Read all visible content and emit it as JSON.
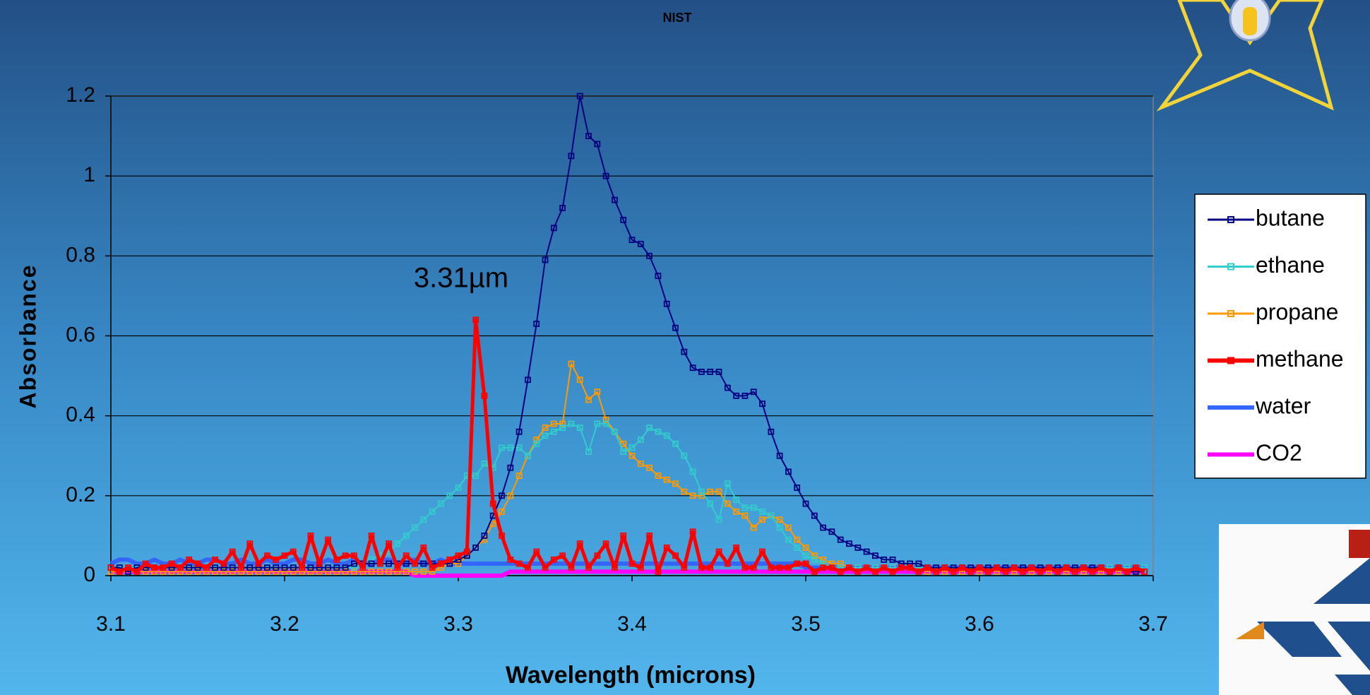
{
  "chart_data": {
    "type": "line",
    "title": "NIST",
    "xlabel": "Wavelength (microns)",
    "ylabel": "Absorbance",
    "annotation": "3.31µm",
    "xlim": [
      3.1,
      3.7
    ],
    "xticks": [
      3.1,
      3.2,
      3.3,
      3.4,
      3.5,
      3.6,
      3.7
    ],
    "ylim": [
      0,
      1.2
    ],
    "yticks": [
      0,
      0.2,
      0.4,
      0.6,
      0.8,
      1,
      1.2
    ],
    "grid": true,
    "legend": "right",
    "x": [
      3.1,
      3.105,
      3.11,
      3.115,
      3.12,
      3.125,
      3.13,
      3.135,
      3.14,
      3.145,
      3.15,
      3.155,
      3.16,
      3.165,
      3.17,
      3.175,
      3.18,
      3.185,
      3.19,
      3.195,
      3.2,
      3.205,
      3.21,
      3.215,
      3.22,
      3.225,
      3.23,
      3.235,
      3.24,
      3.245,
      3.25,
      3.255,
      3.26,
      3.265,
      3.27,
      3.275,
      3.28,
      3.285,
      3.29,
      3.295,
      3.3,
      3.305,
      3.31,
      3.315,
      3.32,
      3.325,
      3.33,
      3.335,
      3.34,
      3.345,
      3.35,
      3.355,
      3.36,
      3.365,
      3.37,
      3.375,
      3.38,
      3.385,
      3.39,
      3.395,
      3.4,
      3.405,
      3.41,
      3.415,
      3.42,
      3.425,
      3.43,
      3.435,
      3.44,
      3.445,
      3.45,
      3.455,
      3.46,
      3.465,
      3.47,
      3.475,
      3.48,
      3.485,
      3.49,
      3.495,
      3.5,
      3.505,
      3.51,
      3.515,
      3.52,
      3.525,
      3.53,
      3.535,
      3.54,
      3.545,
      3.55,
      3.555,
      3.56,
      3.565,
      3.57,
      3.575,
      3.58,
      3.585,
      3.59,
      3.595,
      3.6,
      3.605,
      3.61,
      3.615,
      3.62,
      3.625,
      3.63,
      3.635,
      3.64,
      3.645,
      3.65,
      3.655,
      3.66,
      3.665,
      3.67,
      3.675,
      3.68,
      3.685,
      3.69,
      3.695
    ],
    "series": [
      {
        "name": "butane",
        "color": "#000080",
        "markers": true,
        "values": [
          0.02,
          0.02,
          0.01,
          0.02,
          0.02,
          0.02,
          0.02,
          0.02,
          0.02,
          0.02,
          0.02,
          0.02,
          0.02,
          0.02,
          0.02,
          0.02,
          0.02,
          0.02,
          0.02,
          0.02,
          0.02,
          0.02,
          0.02,
          0.02,
          0.02,
          0.02,
          0.02,
          0.02,
          0.03,
          0.03,
          0.03,
          0.03,
          0.03,
          0.03,
          0.03,
          0.03,
          0.03,
          0.03,
          0.03,
          0.03,
          0.04,
          0.05,
          0.07,
          0.1,
          0.15,
          0.2,
          0.27,
          0.36,
          0.49,
          0.63,
          0.79,
          0.87,
          0.92,
          1.05,
          1.2,
          1.1,
          1.08,
          1.0,
          0.94,
          0.89,
          0.84,
          0.83,
          0.8,
          0.75,
          0.68,
          0.62,
          0.56,
          0.52,
          0.51,
          0.51,
          0.51,
          0.47,
          0.45,
          0.45,
          0.46,
          0.43,
          0.36,
          0.3,
          0.26,
          0.22,
          0.18,
          0.15,
          0.12,
          0.11,
          0.09,
          0.08,
          0.07,
          0.06,
          0.05,
          0.04,
          0.04,
          0.03,
          0.03,
          0.03,
          0.02,
          0.02,
          0.02,
          0.02,
          0.02,
          0.02,
          0.02,
          0.02,
          0.02,
          0.02,
          0.02,
          0.02,
          0.02,
          0.02,
          0.02,
          0.02,
          0.02,
          0.02,
          0.02,
          0.02,
          0.02,
          0.01,
          0.02,
          0.01,
          0.01,
          0.01
        ]
      },
      {
        "name": "ethane",
        "color": "#33cccc",
        "markers": true,
        "values": [
          0.02,
          0.02,
          0.02,
          0.02,
          0.02,
          0.02,
          0.02,
          0.02,
          0.02,
          0.02,
          0.02,
          0.02,
          0.02,
          0.02,
          0.02,
          0.02,
          0.02,
          0.02,
          0.02,
          0.02,
          0.02,
          0.02,
          0.02,
          0.02,
          0.02,
          0.02,
          0.02,
          0.02,
          0.02,
          0.02,
          0.04,
          0.05,
          0.06,
          0.08,
          0.1,
          0.12,
          0.14,
          0.16,
          0.18,
          0.2,
          0.22,
          0.25,
          0.25,
          0.28,
          0.27,
          0.32,
          0.32,
          0.32,
          0.3,
          0.33,
          0.35,
          0.36,
          0.37,
          0.38,
          0.37,
          0.31,
          0.38,
          0.38,
          0.36,
          0.31,
          0.32,
          0.34,
          0.37,
          0.36,
          0.35,
          0.33,
          0.3,
          0.26,
          0.21,
          0.18,
          0.14,
          0.23,
          0.19,
          0.17,
          0.17,
          0.16,
          0.15,
          0.12,
          0.09,
          0.07,
          0.05,
          0.04,
          0.03,
          0.02,
          0.02,
          0.02,
          0.02,
          0.02,
          0.02,
          0.02,
          0.02,
          0.02,
          0.02,
          0.02,
          0.02,
          0.02,
          0.02,
          0.02,
          0.02,
          0.02,
          0.02,
          0.02,
          0.02,
          0.02,
          0.02,
          0.02,
          0.02,
          0.02,
          0.02,
          0.02,
          0.02,
          0.02,
          0.02,
          0.02,
          0.02,
          0.02,
          0.02,
          0.02,
          0.02,
          0.02
        ]
      },
      {
        "name": "propane",
        "color": "#ff9900",
        "markers": true,
        "values": [
          0.01,
          0.01,
          0.01,
          0.01,
          0.01,
          0.01,
          0.01,
          0.01,
          0.01,
          0.01,
          0.01,
          0.01,
          0.01,
          0.01,
          0.01,
          0.01,
          0.01,
          0.01,
          0.01,
          0.01,
          0.01,
          0.01,
          0.01,
          0.01,
          0.01,
          0.01,
          0.01,
          0.01,
          0.01,
          0.01,
          0.01,
          0.01,
          0.01,
          0.01,
          0.01,
          0.01,
          0.01,
          0.01,
          0.02,
          0.03,
          0.03,
          0.05,
          0.07,
          0.09,
          0.13,
          0.16,
          0.2,
          0.25,
          0.3,
          0.34,
          0.37,
          0.38,
          0.38,
          0.53,
          0.49,
          0.44,
          0.46,
          0.39,
          0.36,
          0.33,
          0.3,
          0.28,
          0.27,
          0.25,
          0.24,
          0.23,
          0.21,
          0.2,
          0.2,
          0.21,
          0.21,
          0.18,
          0.16,
          0.15,
          0.12,
          0.14,
          0.15,
          0.14,
          0.12,
          0.09,
          0.07,
          0.05,
          0.04,
          0.03,
          0.03,
          0.02,
          0.02,
          0.02,
          0.02,
          0.02,
          0.02,
          0.02,
          0.02,
          0.02,
          0.01,
          0.02,
          0.01,
          0.02,
          0.01,
          0.02,
          0.01,
          0.02,
          0.01,
          0.02,
          0.01,
          0.02,
          0.01,
          0.02,
          0.01,
          0.02,
          0.01,
          0.02,
          0.01,
          0.02,
          0.01,
          0.02,
          0.01,
          0.02,
          0.01,
          0.01
        ]
      },
      {
        "name": "methane",
        "color": "#ff0000",
        "markers": true,
        "values": [
          0.02,
          0.01,
          0.02,
          0.01,
          0.03,
          0.02,
          0.02,
          0.03,
          0.02,
          0.04,
          0.03,
          0.02,
          0.04,
          0.03,
          0.06,
          0.02,
          0.08,
          0.03,
          0.05,
          0.04,
          0.05,
          0.06,
          0.02,
          0.1,
          0.03,
          0.09,
          0.04,
          0.05,
          0.05,
          0.02,
          0.1,
          0.03,
          0.08,
          0.02,
          0.05,
          0.03,
          0.07,
          0.02,
          0.03,
          0.04,
          0.05,
          0.06,
          0.64,
          0.45,
          0.18,
          0.1,
          0.04,
          0.03,
          0.02,
          0.06,
          0.02,
          0.04,
          0.05,
          0.02,
          0.08,
          0.02,
          0.05,
          0.08,
          0.02,
          0.1,
          0.03,
          0.02,
          0.1,
          0.01,
          0.07,
          0.05,
          0.02,
          0.11,
          0.02,
          0.02,
          0.06,
          0.03,
          0.07,
          0.02,
          0.02,
          0.06,
          0.02,
          0.02,
          0.02,
          0.03,
          0.03,
          0.01,
          0.02,
          0.02,
          0.01,
          0.02,
          0.01,
          0.02,
          0.01,
          0.02,
          0.01,
          0.02,
          0.02,
          0.01,
          0.02,
          0.01,
          0.02,
          0.01,
          0.02,
          0.01,
          0.02,
          0.01,
          0.02,
          0.01,
          0.02,
          0.01,
          0.02,
          0.01,
          0.02,
          0.01,
          0.02,
          0.01,
          0.02,
          0.01,
          0.02,
          0.01,
          0.02,
          0.01,
          0.02,
          0.01
        ]
      },
      {
        "name": "water",
        "color": "#3366ff",
        "markers": false,
        "values": [
          0.03,
          0.04,
          0.04,
          0.03,
          0.03,
          0.04,
          0.03,
          0.03,
          0.04,
          0.03,
          0.03,
          0.04,
          0.04,
          0.03,
          0.03,
          0.04,
          0.03,
          0.03,
          0.04,
          0.03,
          0.03,
          0.04,
          0.04,
          0.03,
          0.03,
          0.04,
          0.03,
          0.03,
          0.04,
          0.03,
          0.03,
          0.04,
          0.04,
          0.03,
          0.03,
          0.04,
          0.03,
          0.03,
          0.04,
          0.03,
          0.03,
          0.03,
          0.03,
          0.03,
          0.03,
          0.03,
          0.03,
          0.03,
          0.03,
          0.03,
          0.03,
          0.03,
          0.03,
          0.03,
          0.03,
          0.03,
          0.03,
          0.03,
          0.03,
          0.03,
          0.03,
          0.03,
          0.03,
          0.03,
          0.03,
          0.03,
          0.03,
          0.03,
          0.03,
          0.03,
          0.03,
          0.03,
          0.03,
          0.03,
          0.03,
          0.03,
          0.03,
          0.03,
          0.03,
          0.03,
          0.02,
          0.02,
          0.02,
          0.02,
          0.02,
          0.02,
          0.02,
          0.02,
          0.02,
          0.02,
          0.02,
          0.02,
          0.02,
          0.02,
          0.02,
          0.02,
          0.02,
          0.02,
          0.02,
          0.02,
          0.02,
          0.02,
          0.02,
          0.02,
          0.02,
          0.02,
          0.02,
          0.02,
          0.02,
          0.02,
          0.02,
          0.02,
          0.02,
          0.02,
          0.02,
          0.02,
          0.02,
          0.02,
          0.02,
          0.02
        ]
      },
      {
        "name": "CO2",
        "color": "#ff00ff",
        "markers": false,
        "values": [
          0.01,
          0.01,
          0.01,
          0.01,
          0.01,
          0.01,
          0.01,
          0.01,
          0.01,
          0.01,
          0.01,
          0.01,
          0.01,
          0.01,
          0.01,
          0.01,
          0.01,
          0.01,
          0.01,
          0.01,
          0.01,
          0.01,
          0.01,
          0.01,
          0.01,
          0.01,
          0.01,
          0.01,
          0.01,
          0.01,
          0.01,
          0.01,
          0.01,
          0.01,
          0.01,
          0.0,
          0.0,
          0.0,
          0.0,
          0.0,
          0.0,
          0.0,
          0.0,
          0.0,
          0.0,
          0.0,
          0.01,
          0.01,
          0.01,
          0.01,
          0.01,
          0.01,
          0.01,
          0.01,
          0.01,
          0.01,
          0.01,
          0.01,
          0.01,
          0.01,
          0.01,
          0.01,
          0.01,
          0.01,
          0.01,
          0.01,
          0.01,
          0.01,
          0.01,
          0.01,
          0.01,
          0.01,
          0.01,
          0.01,
          0.01,
          0.01,
          0.01,
          0.01,
          0.01,
          0.01,
          0.01,
          0.01,
          0.01,
          0.01,
          0.01,
          0.01,
          0.01,
          0.01,
          0.01,
          0.01,
          0.01,
          0.01,
          0.01,
          0.01,
          0.01,
          0.01,
          0.01,
          0.01,
          0.01,
          0.01,
          0.01,
          0.01,
          0.01,
          0.01,
          0.01,
          0.01,
          0.01,
          0.01,
          0.01,
          0.01,
          0.01,
          0.01,
          0.01,
          0.01,
          0.01,
          0.01,
          0.01,
          0.01,
          0.01,
          0.01
        ]
      }
    ]
  }
}
